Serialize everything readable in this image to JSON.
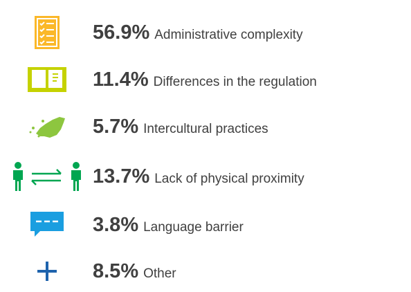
{
  "items": [
    {
      "value": "56.9%",
      "label": "Administrative complexity"
    },
    {
      "value": "11.4%",
      "label": "Differences in the regulation"
    },
    {
      "value": "5.7%",
      "label": "Intercultural practices"
    },
    {
      "value": "13.7%",
      "label": "Lack of physical proximity"
    },
    {
      "value": "3.8%",
      "label": "Language barrier"
    },
    {
      "value": "8.5%",
      "label": "Other"
    }
  ]
}
